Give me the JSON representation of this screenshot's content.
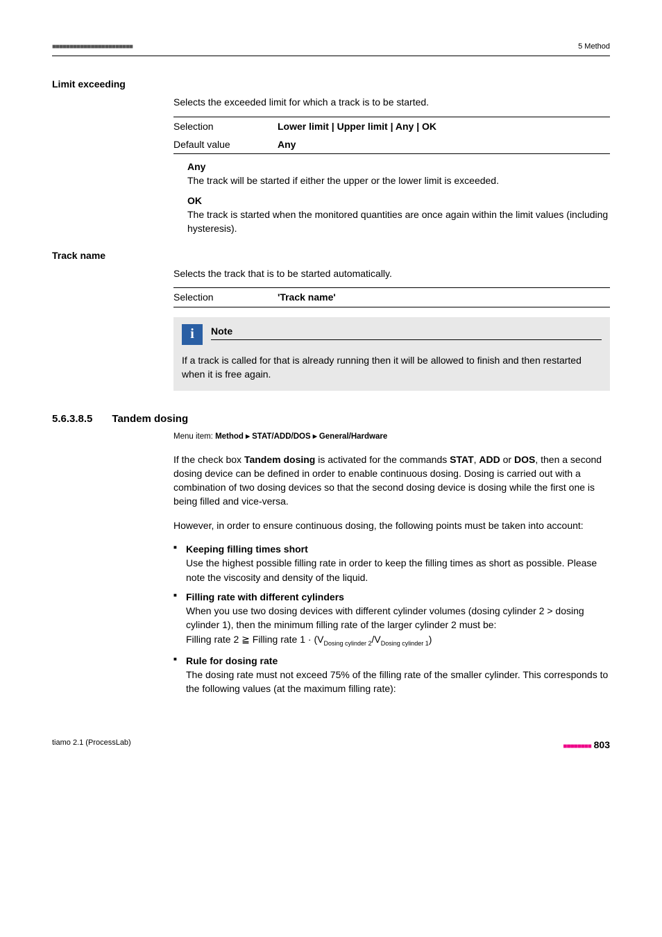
{
  "header": {
    "left_dots": "■■■■■■■■■■■■■■■■■■■■■■■",
    "right": "5 Method"
  },
  "limit_exceeding": {
    "label": "Limit exceeding",
    "desc": "Selects the exceeded limit for which a track is to be started.",
    "selection_label": "Selection",
    "selection_value": "Lower limit | Upper limit | Any | OK",
    "default_label": "Default value",
    "default_value": "Any",
    "any": {
      "label": "Any",
      "text": "The track will be started if either the upper or the lower limit is exceeded."
    },
    "ok": {
      "label": "OK",
      "text": "The track is started when the monitored quantities are once again within the limit values (including hysteresis)."
    }
  },
  "track_name": {
    "label": "Track name",
    "desc": "Selects the track that is to be started automatically.",
    "selection_label": "Selection",
    "selection_value": "'Track name'",
    "note_title": "Note",
    "note_body": "If a track is called for that is already running then it will be allowed to finish and then restarted when it is free again."
  },
  "tandem": {
    "num": "5.6.3.8.5",
    "title": "Tandem dosing",
    "menu_prefix": "Menu item: ",
    "menu_path": "Method ▸ STAT/ADD/DOS ▸ General/Hardware",
    "p1_a": "If the check box ",
    "p1_b": "Tandem dosing",
    "p1_c": " is activated for the commands ",
    "p1_d": "STAT",
    "p1_e": ", ",
    "p1_f": "ADD",
    "p1_g": "  or ",
    "p1_h": "DOS",
    "p1_i": ", then a second dosing device can be defined in order to enable continuous dosing. Dosing is carried out with a combination of two dosing devices so that the second dosing device is dosing while the first one is being filled and vice-versa.",
    "p2": "However, in order to ensure continuous dosing, the following points must be taken into account:",
    "b1_title": "Keeping filling times short",
    "b1_text": "Use the highest possible filling rate in order to keep the filling times as short as possible. Please note the viscosity and density of the liquid.",
    "b2_title": "Filling rate with different cylinders",
    "b2_text": "When you use two dosing devices with different cylinder volumes (dosing cylinder 2 > dosing cylinder 1), then the minimum filling rate of the larger cylinder 2 must be:",
    "b2_formula_a": "Filling rate 2 ≧ Filling rate 1 · (V",
    "b2_formula_sub1": "Dosing cylinder 2",
    "b2_formula_mid": "/V",
    "b2_formula_sub2": "Dosing cylinder 1",
    "b2_formula_end": ")",
    "b3_title": "Rule for dosing rate",
    "b3_text": "The dosing rate must not exceed 75% of the filling rate of the smaller cylinder. This corresponds to the following values (at the maximum filling rate):"
  },
  "footer": {
    "left": "tiamo 2.1 (ProcessLab)",
    "dots": "■■■■■■■■",
    "page": " 803"
  }
}
